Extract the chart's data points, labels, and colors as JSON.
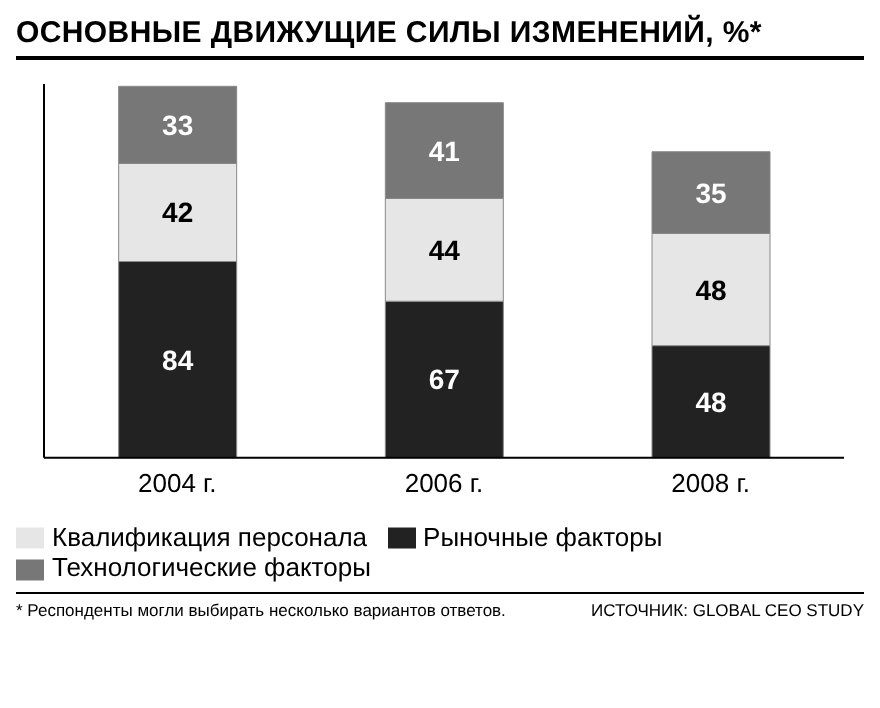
{
  "chart_data": {
    "type": "bar",
    "title": "ОСНОВНЫЕ ДВИЖУЩИЕ СИЛЫ ИЗМЕНЕНИЙ, %*",
    "categories": [
      "2004 г.",
      "2006 г.",
      "2008 г."
    ],
    "stacked": true,
    "data_labels": true,
    "tick_labels": "x",
    "legend": "bottom",
    "series": [
      {
        "name": "Рыночные факторы",
        "color": "#222222",
        "values": [
          84,
          67,
          48
        ]
      },
      {
        "name": "Квалификация персонала",
        "color": "#e6e6e6",
        "values": [
          42,
          44,
          48
        ]
      },
      {
        "name": "Технологические факторы",
        "color": "#777777",
        "values": [
          33,
          41,
          35
        ]
      }
    ],
    "annotations": [
      "* Респонденты могли выбирать несколько вариантов ответов.",
      "ИСТОЧНИК: GLOBAL CEO STUDY"
    ]
  }
}
